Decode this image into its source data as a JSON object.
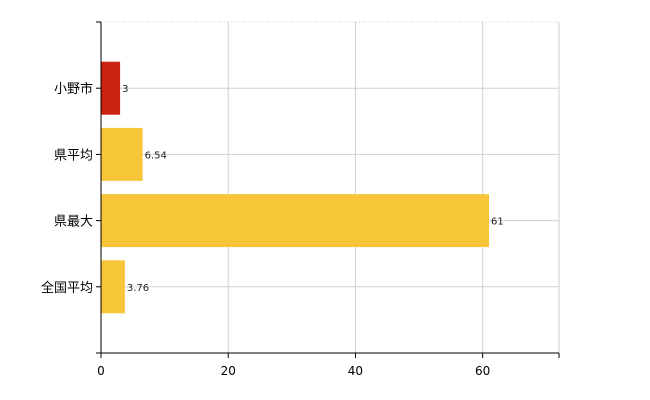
{
  "chart_data": {
    "type": "bar",
    "orientation": "horizontal",
    "title": "",
    "xlabel": "",
    "ylabel": "",
    "categories": [
      "小野市",
      "県平均",
      "県最大",
      "全国平均"
    ],
    "values": [
      3,
      6.54,
      61,
      3.76
    ],
    "value_labels": [
      "3",
      "6.54",
      "61",
      "3.76"
    ],
    "bar_colors": [
      "#cc2211",
      "#f7c638",
      "#f7c638",
      "#f7c638"
    ],
    "xlim": [
      0,
      72
    ],
    "x_ticks": [
      0,
      20,
      40,
      60
    ],
    "x_tick_labels": [
      "0",
      "20",
      "40",
      "60"
    ],
    "grid": true,
    "legend": "none"
  }
}
